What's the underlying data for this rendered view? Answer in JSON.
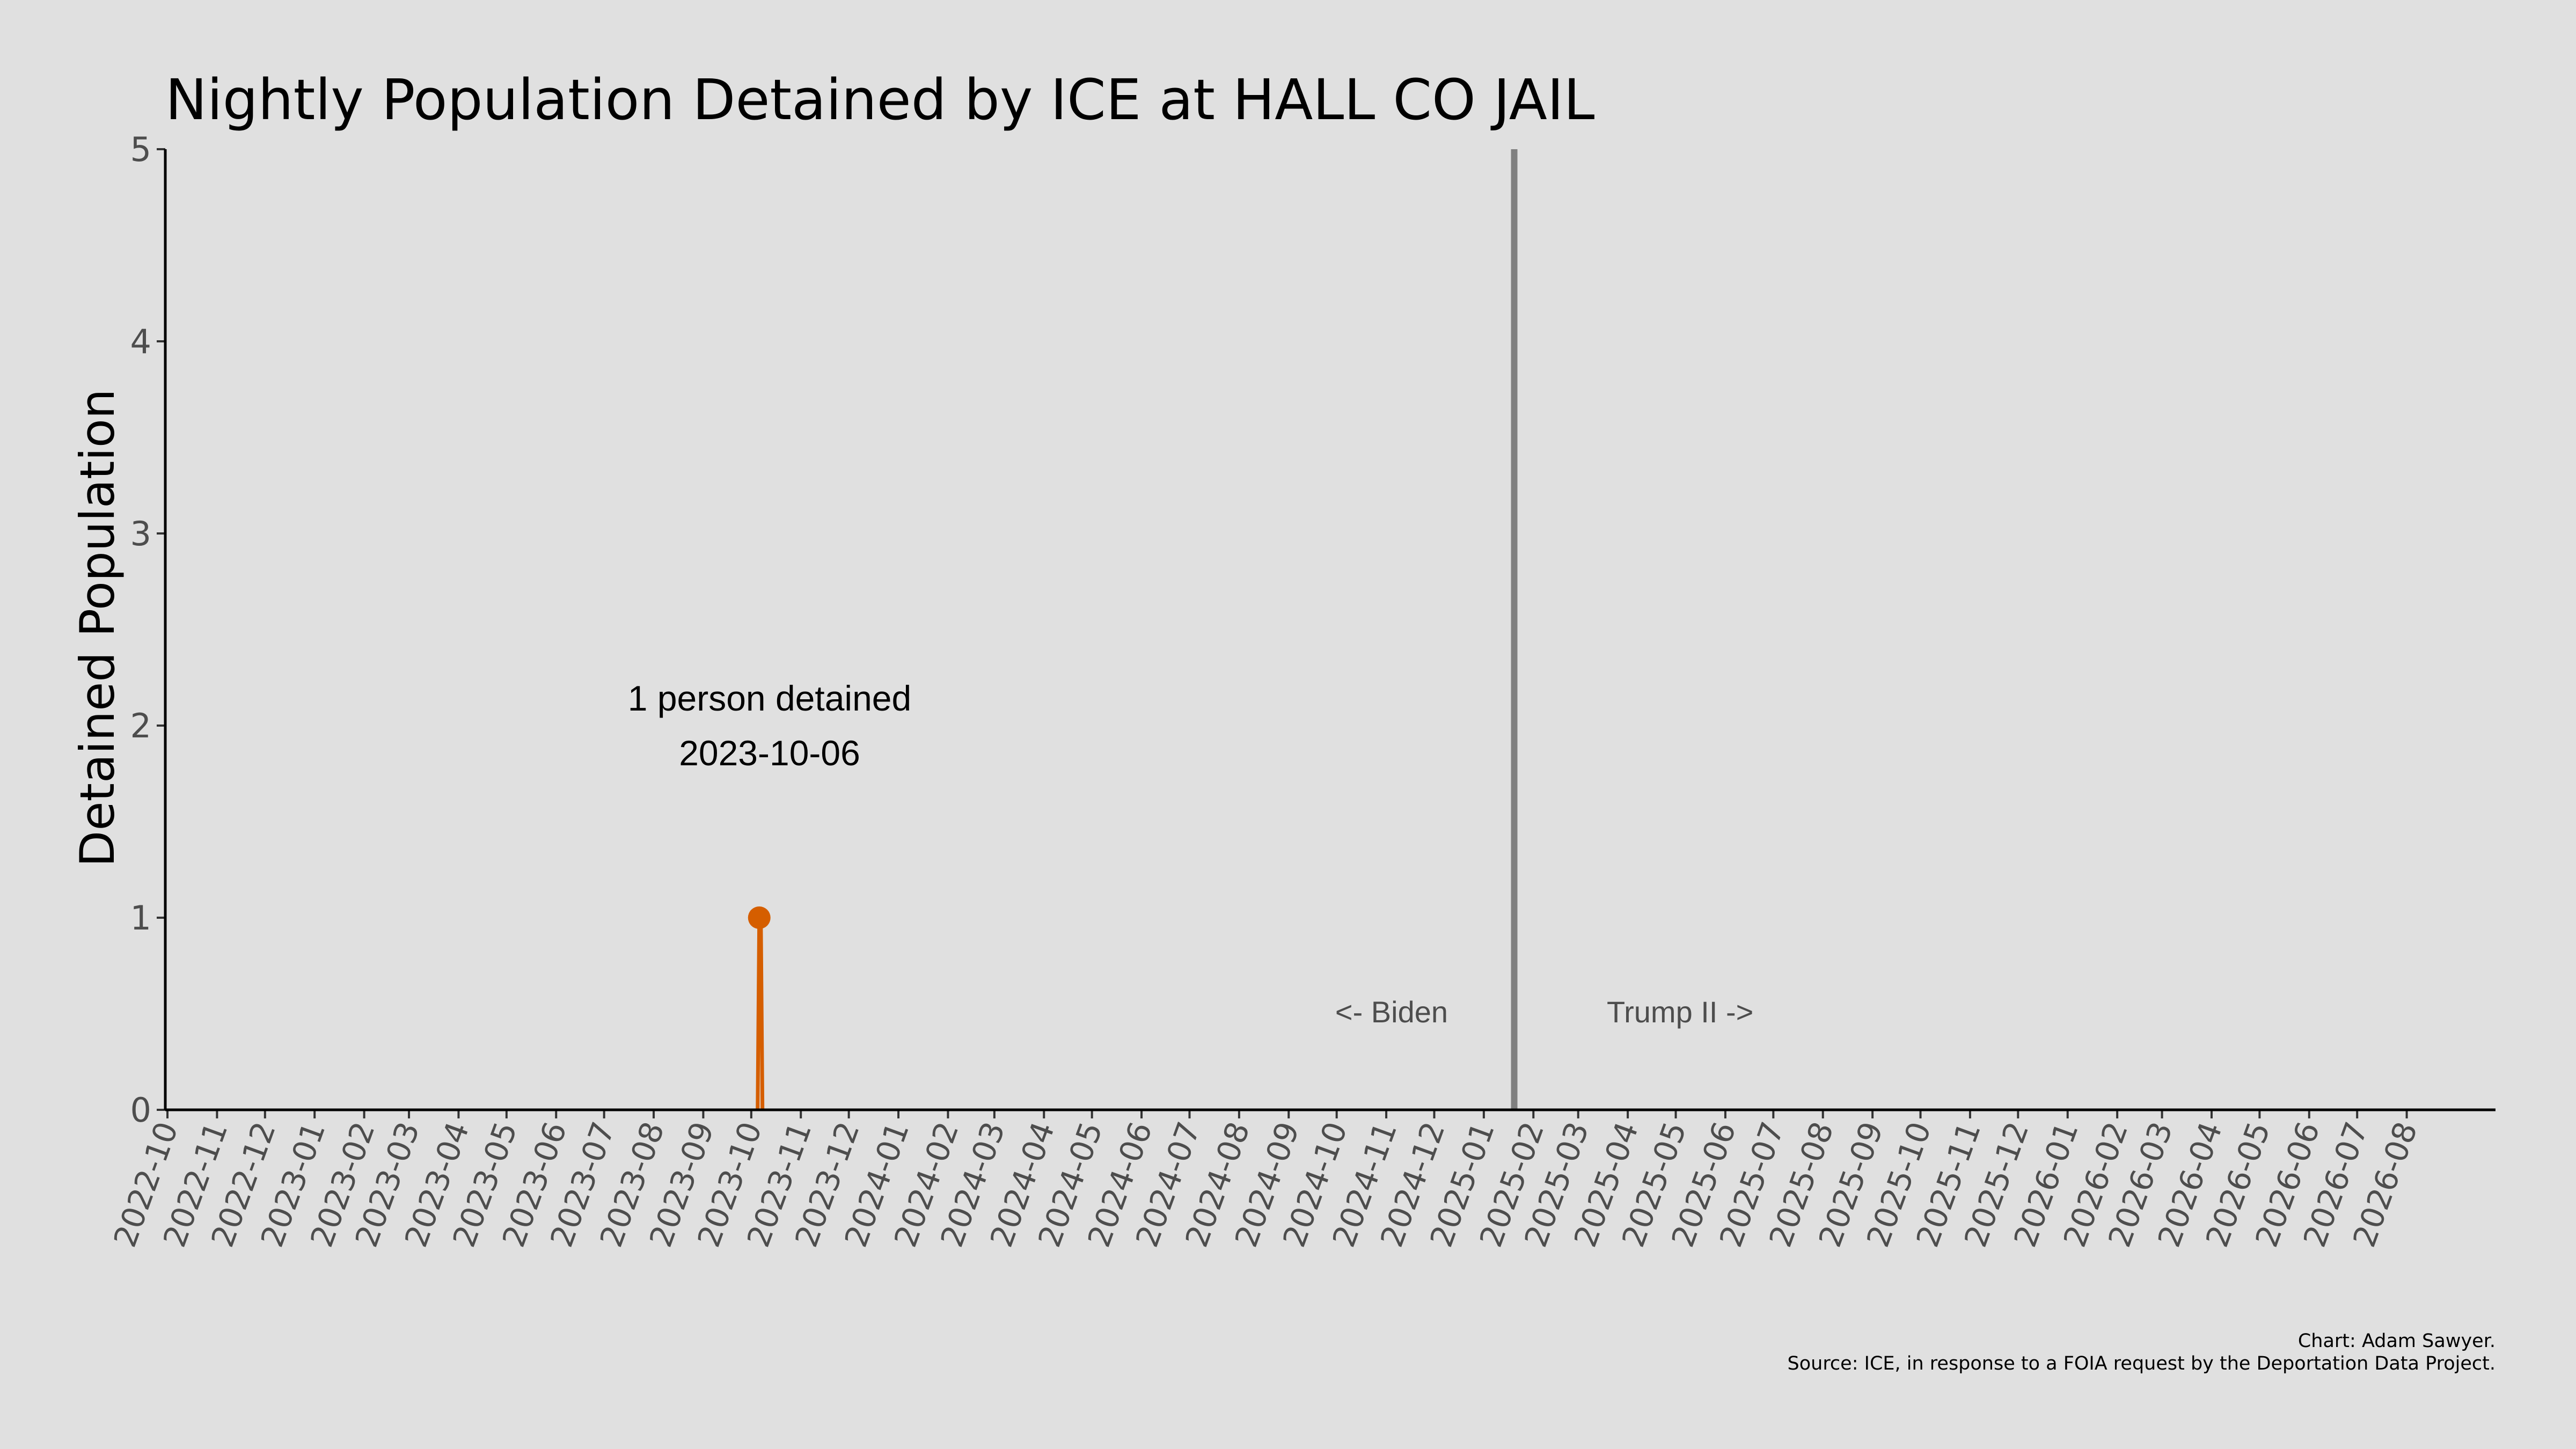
{
  "chart_data": {
    "type": "line",
    "title": "Nightly Population Detained by ICE at HALL CO JAIL",
    "xlabel": "",
    "ylabel": "Detained Population",
    "x_domain": [
      "2022-10-01",
      "2026-08-31"
    ],
    "ylim": [
      0,
      5
    ],
    "y_ticks": [
      0,
      1,
      2,
      3,
      4,
      5
    ],
    "x_ticks": [
      "2022-10",
      "2022-11",
      "2022-12",
      "2023-01",
      "2023-02",
      "2023-03",
      "2023-04",
      "2023-05",
      "2023-06",
      "2023-07",
      "2023-08",
      "2023-09",
      "2023-10",
      "2023-11",
      "2023-12",
      "2024-01",
      "2024-02",
      "2024-03",
      "2024-04",
      "2024-05",
      "2024-06",
      "2024-07",
      "2024-08",
      "2024-09",
      "2024-10",
      "2024-11",
      "2024-12",
      "2025-01",
      "2025-02",
      "2025-03",
      "2025-04",
      "2025-05",
      "2025-06",
      "2025-07",
      "2025-08",
      "2025-09",
      "2025-10",
      "2025-11",
      "2025-12",
      "2026-01",
      "2026-02",
      "2026-03",
      "2026-04",
      "2026-05",
      "2026-06",
      "2026-07",
      "2026-08"
    ],
    "series": [
      {
        "values": [
          {
            "x": "2023-10-05",
            "y": 0
          },
          {
            "x": "2023-10-06",
            "y": 1
          },
          {
            "x": "2023-10-07",
            "y": 1
          },
          {
            "x": "2023-10-08",
            "y": 0
          }
        ],
        "color": "#d55e00"
      }
    ],
    "peak_point": {
      "x": "2023-10-06",
      "y": 1,
      "color": "#d55e00"
    },
    "annotation": {
      "line1": "1 person detained",
      "line2": "2023-10-06"
    },
    "event_line": {
      "x": "2025-01-20",
      "color": "#808080"
    },
    "era_labels": {
      "left": "<- Biden",
      "right": "Trump II ->"
    },
    "grid": false,
    "legend": "none"
  },
  "caption": {
    "line1": "Chart: Adam Sawyer.",
    "line2": "Source: ICE, in response to a FOIA request by the Deportation Data Project."
  },
  "colors": {
    "background": "#e0e0e0",
    "axis": "#000000",
    "tick_text": "#4d4d4d",
    "series": "#d55e00",
    "event_line": "#808080"
  }
}
